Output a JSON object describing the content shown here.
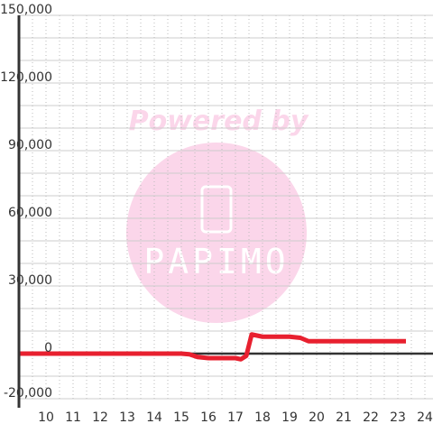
{
  "chart_data": {
    "type": "line",
    "watermark": {
      "top": "Powered by",
      "logo": "PAPIMO"
    },
    "x": [
      9,
      10,
      11,
      12,
      13,
      14,
      15,
      15.3,
      15.6,
      16,
      16.5,
      17,
      17.2,
      17.4,
      17.6,
      18,
      18.5,
      19,
      19.4,
      19.7,
      20,
      21,
      22,
      23,
      23.3
    ],
    "series": [
      {
        "color": "#e8202f",
        "values": [
          0,
          0,
          0,
          0,
          0,
          0,
          0,
          -300,
          -1500,
          -2000,
          -2000,
          -2000,
          -2500,
          -1000,
          8500,
          7500,
          7500,
          7500,
          7000,
          5500,
          5500,
          5500,
          5500,
          5500,
          5500
        ]
      }
    ],
    "xlim": [
      9,
      24.3
    ],
    "xticks": [
      10,
      11,
      12,
      13,
      14,
      15,
      16,
      17,
      18,
      19,
      20,
      21,
      22,
      23,
      24
    ],
    "x_minor_ticks": [
      9.5,
      10.5,
      11.5,
      12.5,
      13.5,
      14.5,
      15.5,
      16.5,
      17.5,
      18.5,
      19.5,
      20.5,
      21.5,
      22.5,
      23.5
    ],
    "ylim": [
      -20000,
      150000
    ],
    "yticks": [
      {
        "value": -20000,
        "label": "-20,000"
      },
      0,
      {
        "value": 30000,
        "label": "30,000"
      },
      {
        "value": 60000,
        "label": "60,000"
      },
      {
        "value": 90000,
        "label": "90,000"
      },
      {
        "value": 120000,
        "label": "120,000"
      },
      {
        "value": 150000,
        "label": "150,000"
      }
    ],
    "y_minor_ticks": [
      -10000,
      10000,
      20000,
      40000,
      50000,
      70000,
      80000,
      100000,
      110000,
      130000,
      140000
    ],
    "grid": true
  }
}
